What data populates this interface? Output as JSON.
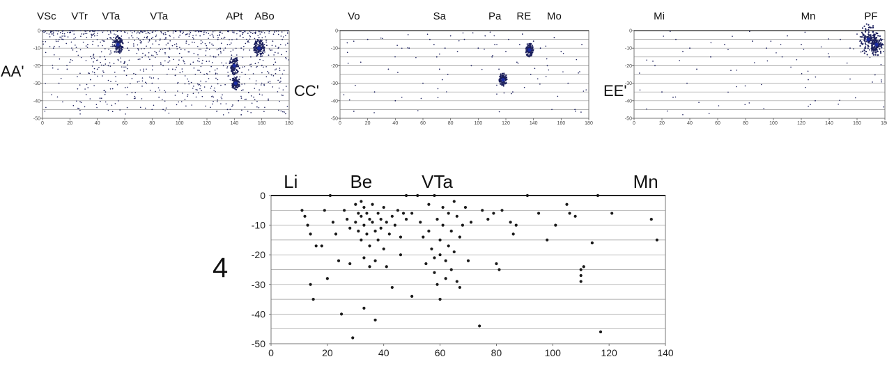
{
  "chart_data": [
    {
      "id": "AA",
      "type": "scatter",
      "side_label": "AA'",
      "top_labels": [
        {
          "text": "VSc",
          "x": 3
        },
        {
          "text": "VTr",
          "x": 27
        },
        {
          "text": "VTa",
          "x": 50
        },
        {
          "text": "VTa",
          "x": 85
        },
        {
          "text": "APt",
          "x": 140
        },
        {
          "text": "ABo",
          "x": 162
        }
      ],
      "xlim": [
        0,
        180
      ],
      "ylim": [
        -50,
        0
      ],
      "xticks": [
        0,
        20,
        40,
        60,
        80,
        100,
        120,
        140,
        160,
        180
      ],
      "yticks": [
        0,
        -10,
        -20,
        -30,
        -40,
        -50
      ],
      "grid": true,
      "color": "#1b1f5c",
      "density": "high",
      "clusters": [
        {
          "x": 55,
          "y": -8,
          "r": 4
        },
        {
          "x": 140,
          "y": -20,
          "r": 4
        },
        {
          "x": 141,
          "y": -30,
          "r": 3
        },
        {
          "x": 158,
          "y": -10,
          "r": 4
        }
      ],
      "points": [
        [
          15,
          -5
        ],
        [
          18,
          -22
        ],
        [
          25,
          -12
        ],
        [
          30,
          -2
        ],
        [
          33,
          -8
        ],
        [
          38,
          -3
        ],
        [
          42,
          -15
        ],
        [
          45,
          -6
        ],
        [
          48,
          -20
        ],
        [
          50,
          -9
        ],
        [
          52,
          -4
        ],
        [
          55,
          -8
        ],
        [
          56,
          -12
        ],
        [
          58,
          -6
        ],
        [
          60,
          -18
        ],
        [
          62,
          -10
        ],
        [
          65,
          -3
        ],
        [
          68,
          -25
        ],
        [
          70,
          -11
        ],
        [
          72,
          -7
        ],
        [
          75,
          -14
        ],
        [
          78,
          -5
        ],
        [
          80,
          -30
        ],
        [
          82,
          -12
        ],
        [
          85,
          -8
        ],
        [
          88,
          -20
        ],
        [
          90,
          -4
        ],
        [
          92,
          -15
        ],
        [
          95,
          -22
        ],
        [
          98,
          -9
        ],
        [
          100,
          -13
        ],
        [
          105,
          -6
        ],
        [
          110,
          -18
        ],
        [
          115,
          -3
        ],
        [
          118,
          -25
        ],
        [
          120,
          -10
        ],
        [
          122,
          -7
        ],
        [
          125,
          -15
        ],
        [
          128,
          -5
        ],
        [
          130,
          -12
        ],
        [
          132,
          -20
        ],
        [
          135,
          -8
        ],
        [
          137,
          -28
        ],
        [
          138,
          -14
        ],
        [
          140,
          -22
        ],
        [
          141,
          -32
        ],
        [
          142,
          -18
        ],
        [
          143,
          -40
        ],
        [
          145,
          -10
        ],
        [
          148,
          -25
        ],
        [
          150,
          -6
        ],
        [
          152,
          -15
        ],
        [
          155,
          -9
        ],
        [
          157,
          -12
        ],
        [
          158,
          -4
        ],
        [
          160,
          -20
        ],
        [
          162,
          -8
        ],
        [
          165,
          -14
        ],
        [
          168,
          -6
        ],
        [
          170,
          -18
        ],
        [
          172,
          -10
        ],
        [
          175,
          -5
        ],
        [
          178,
          -12
        ],
        [
          8,
          -10
        ],
        [
          12,
          -30
        ],
        [
          20,
          -18
        ],
        [
          35,
          -28
        ],
        [
          40,
          -22
        ],
        [
          46,
          -35
        ],
        [
          85,
          -38
        ],
        [
          88,
          -45
        ],
        [
          135,
          -45
        ],
        [
          145,
          -48
        ],
        [
          160,
          -30
        ]
      ]
    },
    {
      "id": "CC",
      "type": "scatter",
      "side_label": "CC'",
      "top_labels": [
        {
          "text": "Vo",
          "x": 10
        },
        {
          "text": "Sa",
          "x": 72
        },
        {
          "text": "Pa",
          "x": 112
        },
        {
          "text": "RE",
          "x": 133
        },
        {
          "text": "Mo",
          "x": 155
        }
      ],
      "xlim": [
        0,
        180
      ],
      "ylim": [
        -50,
        0
      ],
      "xticks": [
        0,
        20,
        40,
        60,
        80,
        100,
        120,
        140,
        160,
        180
      ],
      "yticks": [
        0,
        -10,
        -20,
        -30,
        -40,
        -50
      ],
      "grid": true,
      "color": "#1b1f5c",
      "density": "low",
      "clusters": [
        {
          "x": 118,
          "y": -28,
          "r": 3
        },
        {
          "x": 137,
          "y": -11,
          "r": 3
        }
      ],
      "points": [
        [
          10,
          -46
        ],
        [
          15,
          -18
        ],
        [
          20,
          -5
        ],
        [
          25,
          -35
        ],
        [
          35,
          -22
        ],
        [
          40,
          -40
        ],
        [
          50,
          -10
        ],
        [
          60,
          -30
        ],
        [
          65,
          -5
        ],
        [
          68,
          -8
        ],
        [
          70,
          -15
        ],
        [
          72,
          -22
        ],
        [
          74,
          -28
        ],
        [
          76,
          -10
        ],
        [
          78,
          -25
        ],
        [
          80,
          -3
        ],
        [
          85,
          -12
        ],
        [
          90,
          -5
        ],
        [
          95,
          -20
        ],
        [
          100,
          -10
        ],
        [
          105,
          -3
        ],
        [
          110,
          -15
        ],
        [
          112,
          -8
        ],
        [
          115,
          -22
        ],
        [
          118,
          -28
        ],
        [
          120,
          -12
        ],
        [
          122,
          -5
        ],
        [
          125,
          -35
        ],
        [
          128,
          -18
        ],
        [
          130,
          -8
        ],
        [
          132,
          -2
        ],
        [
          135,
          -14
        ],
        [
          137,
          -11
        ],
        [
          138,
          -25
        ],
        [
          140,
          -6
        ],
        [
          145,
          -10
        ],
        [
          150,
          -20
        ],
        [
          155,
          -4
        ],
        [
          160,
          -12
        ],
        [
          165,
          -30
        ],
        [
          170,
          -45
        ],
        [
          175,
          -8
        ]
      ]
    },
    {
      "id": "EE",
      "type": "scatter",
      "side_label": "EE'",
      "top_labels": [
        {
          "text": "Mi",
          "x": 18
        },
        {
          "text": "Mn",
          "x": 125
        },
        {
          "text": "PF",
          "x": 170
        }
      ],
      "xlim": [
        0,
        180
      ],
      "ylim": [
        -50,
        0
      ],
      "xticks": [
        0,
        20,
        40,
        60,
        80,
        100,
        120,
        140,
        160,
        180
      ],
      "yticks": [
        0,
        -10,
        -20,
        -30,
        -40,
        -50
      ],
      "grid": true,
      "color": "#1b1f5c",
      "density": "low",
      "clusters": [
        {
          "x": 168,
          "y": -5,
          "r": 7
        },
        {
          "x": 174,
          "y": -8,
          "r": 5
        }
      ],
      "points": [
        [
          15,
          -20
        ],
        [
          20,
          -35
        ],
        [
          28,
          -38
        ],
        [
          30,
          -5
        ],
        [
          35,
          -12
        ],
        [
          38,
          -30
        ],
        [
          40,
          -10
        ],
        [
          45,
          -22
        ],
        [
          55,
          -15
        ],
        [
          65,
          -8
        ],
        [
          85,
          -6
        ],
        [
          95,
          -10
        ],
        [
          110,
          -3
        ],
        [
          120,
          -8
        ],
        [
          125,
          -28
        ],
        [
          130,
          -40
        ],
        [
          140,
          -15
        ],
        [
          148,
          -5
        ],
        [
          155,
          -10
        ],
        [
          160,
          -2
        ],
        [
          162,
          -6
        ],
        [
          165,
          -3
        ],
        [
          166,
          -9
        ],
        [
          168,
          -5
        ],
        [
          169,
          -11
        ],
        [
          170,
          -4
        ],
        [
          171,
          -7
        ],
        [
          172,
          -2
        ],
        [
          173,
          -10
        ],
        [
          174,
          -6
        ],
        [
          175,
          -3
        ],
        [
          176,
          -9
        ],
        [
          178,
          -5
        ],
        [
          179,
          -12
        ]
      ]
    },
    {
      "id": "four",
      "type": "scatter",
      "side_label": "4",
      "top_labels": [
        {
          "text": "Li",
          "x": 7
        },
        {
          "text": "Be",
          "x": 32
        },
        {
          "text": "VTa",
          "x": 59
        },
        {
          "text": "Mn",
          "x": 133
        }
      ],
      "xlim": [
        0,
        140
      ],
      "ylim": [
        -50,
        0
      ],
      "xticks": [
        0,
        20,
        40,
        60,
        80,
        100,
        120,
        140
      ],
      "yticks": [
        0,
        -10,
        -20,
        -30,
        -40,
        -50
      ],
      "grid": true,
      "color": "#1a1a1a",
      "points": [
        [
          11,
          -5
        ],
        [
          12,
          -7
        ],
        [
          13,
          -10
        ],
        [
          14,
          -13
        ],
        [
          14,
          -30
        ],
        [
          15,
          -35
        ],
        [
          16,
          -17
        ],
        [
          18,
          -17
        ],
        [
          19,
          -5
        ],
        [
          20,
          -28
        ],
        [
          21,
          0
        ],
        [
          22,
          -9
        ],
        [
          23,
          -13
        ],
        [
          24,
          -22
        ],
        [
          25,
          -40
        ],
        [
          26,
          -5
        ],
        [
          27,
          -8
        ],
        [
          28,
          -11
        ],
        [
          28,
          -23
        ],
        [
          29,
          -48
        ],
        [
          30,
          -3
        ],
        [
          30,
          -9
        ],
        [
          31,
          -6
        ],
        [
          31,
          -12
        ],
        [
          32,
          -2
        ],
        [
          32,
          -7
        ],
        [
          32,
          -15
        ],
        [
          33,
          -4
        ],
        [
          33,
          -10
        ],
        [
          33,
          -21
        ],
        [
          33,
          -38
        ],
        [
          34,
          -6
        ],
        [
          34,
          -13
        ],
        [
          35,
          -8
        ],
        [
          35,
          -17
        ],
        [
          35,
          -24
        ],
        [
          36,
          -3
        ],
        [
          36,
          -9
        ],
        [
          37,
          -12
        ],
        [
          37,
          -22
        ],
        [
          37,
          -42
        ],
        [
          38,
          -6
        ],
        [
          38,
          -15
        ],
        [
          39,
          -8
        ],
        [
          39,
          -11
        ],
        [
          40,
          -4
        ],
        [
          40,
          -18
        ],
        [
          41,
          -9
        ],
        [
          41,
          -24
        ],
        [
          42,
          -13
        ],
        [
          43,
          -7
        ],
        [
          43,
          -31
        ],
        [
          44,
          -10
        ],
        [
          45,
          -5
        ],
        [
          46,
          -14
        ],
        [
          46,
          -20
        ],
        [
          47,
          -6
        ],
        [
          48,
          0
        ],
        [
          48,
          -8
        ],
        [
          50,
          -6
        ],
        [
          50,
          -34
        ],
        [
          52,
          0
        ],
        [
          53,
          -9
        ],
        [
          54,
          -14
        ],
        [
          55,
          -23
        ],
        [
          56,
          -3
        ],
        [
          56,
          -12
        ],
        [
          57,
          -18
        ],
        [
          58,
          0
        ],
        [
          58,
          -21
        ],
        [
          58,
          -26
        ],
        [
          59,
          -8
        ],
        [
          59,
          -30
        ],
        [
          60,
          -15
        ],
        [
          60,
          -20
        ],
        [
          60,
          -35
        ],
        [
          61,
          -4
        ],
        [
          61,
          -10
        ],
        [
          62,
          -22
        ],
        [
          62,
          -28
        ],
        [
          63,
          -6
        ],
        [
          63,
          -17
        ],
        [
          64,
          -12
        ],
        [
          64,
          -25
        ],
        [
          65,
          -2
        ],
        [
          65,
          -19
        ],
        [
          66,
          -7
        ],
        [
          66,
          -29
        ],
        [
          67,
          -14
        ],
        [
          67,
          -31
        ],
        [
          68,
          -10
        ],
        [
          69,
          -4
        ],
        [
          70,
          -22
        ],
        [
          71,
          -9
        ],
        [
          74,
          -44
        ],
        [
          75,
          -5
        ],
        [
          77,
          -8
        ],
        [
          79,
          -6
        ],
        [
          80,
          -23
        ],
        [
          81,
          -25
        ],
        [
          82,
          -5
        ],
        [
          85,
          -9
        ],
        [
          86,
          -13
        ],
        [
          87,
          -10
        ],
        [
          91,
          0
        ],
        [
          95,
          -6
        ],
        [
          98,
          -15
        ],
        [
          101,
          -10
        ],
        [
          105,
          -3
        ],
        [
          106,
          -6
        ],
        [
          108,
          -7
        ],
        [
          110,
          -25
        ],
        [
          110,
          -27
        ],
        [
          110,
          -29
        ],
        [
          111,
          -24
        ],
        [
          114,
          -16
        ],
        [
          116,
          0
        ],
        [
          117,
          -46
        ],
        [
          121,
          -6
        ],
        [
          135,
          -8
        ],
        [
          137,
          -15
        ]
      ]
    }
  ]
}
